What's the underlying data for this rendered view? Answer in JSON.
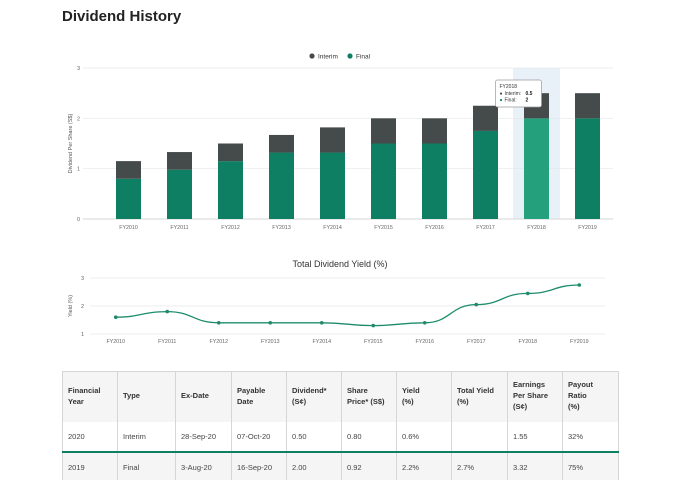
{
  "page": {
    "title": "Dividend History"
  },
  "colors": {
    "interim": "#454a4b",
    "final": "#0e7f62",
    "final_highlight": "#24a07c",
    "line": "#1e8c6c",
    "hover_band": "#e9f1f8"
  },
  "chart_data": [
    {
      "type": "bar",
      "stacked": true,
      "categories": [
        "FY2010",
        "FY2011",
        "FY2012",
        "FY2013",
        "FY2014",
        "FY2015",
        "FY2016",
        "FY2017",
        "FY2018",
        "FY2019"
      ],
      "series": [
        {
          "name": "Interim",
          "values": [
            0.35,
            0.35,
            0.35,
            0.35,
            0.5,
            0.5,
            0.5,
            0.5,
            0.5,
            0.5
          ]
        },
        {
          "name": "Final",
          "values": [
            0.8,
            0.98,
            1.15,
            1.32,
            1.32,
            1.5,
            1.5,
            1.75,
            2,
            2
          ]
        }
      ],
      "ylabel": "Dividend Per Share (S$)",
      "yticks": [
        "0",
        "1",
        "2",
        "3"
      ],
      "ylim": [
        0,
        3
      ],
      "legend": "top-center",
      "grid": true,
      "tooltip": {
        "title": "FY2018",
        "rows": [
          {
            "label": "Interim:",
            "value": "0.5"
          },
          {
            "label": "Final:",
            "value": "2"
          }
        ]
      }
    },
    {
      "type": "line",
      "title": "Total Dividend Yield (%)",
      "categories": [
        "FY2010",
        "FY2011",
        "FY2012",
        "FY2013",
        "FY2014",
        "FY2015",
        "FY2016",
        "FY2017",
        "FY2018",
        "FY2019"
      ],
      "series": [
        {
          "values": [
            1.6,
            1.8,
            1.4,
            1.4,
            1.4,
            1.3,
            1.4,
            2.05,
            2.45,
            2.75
          ]
        }
      ],
      "ylabel": "Yield (%)",
      "yticks": [
        "1",
        "2",
        "3"
      ],
      "ylim": [
        1,
        3
      ],
      "grid": true
    }
  ],
  "table": {
    "headers": [
      [
        "Financial",
        "Year"
      ],
      [
        "Type"
      ],
      [
        "Ex-Date"
      ],
      [
        "Payable",
        "Date"
      ],
      [
        "Dividend*",
        "(S¢)"
      ],
      [
        "Share",
        "Price* (S$)"
      ],
      [
        "Yield",
        "(%)"
      ],
      [
        "Total Yield",
        "(%)"
      ],
      [
        "Earnings",
        "Per Share",
        "(S¢)"
      ],
      [
        "Payout",
        "Ratio",
        "(%)"
      ]
    ],
    "rows": [
      [
        "2020",
        "Interim",
        "28-Sep-20",
        "07-Oct-20",
        "0.50",
        "0.80",
        "0.6%",
        "",
        "1.55",
        "32%"
      ],
      [
        "2019",
        "Final",
        "3-Aug-20",
        "16-Sep-20",
        "2.00",
        "0.92",
        "2.2%",
        "2.7%",
        "3.32",
        "75%"
      ]
    ]
  }
}
